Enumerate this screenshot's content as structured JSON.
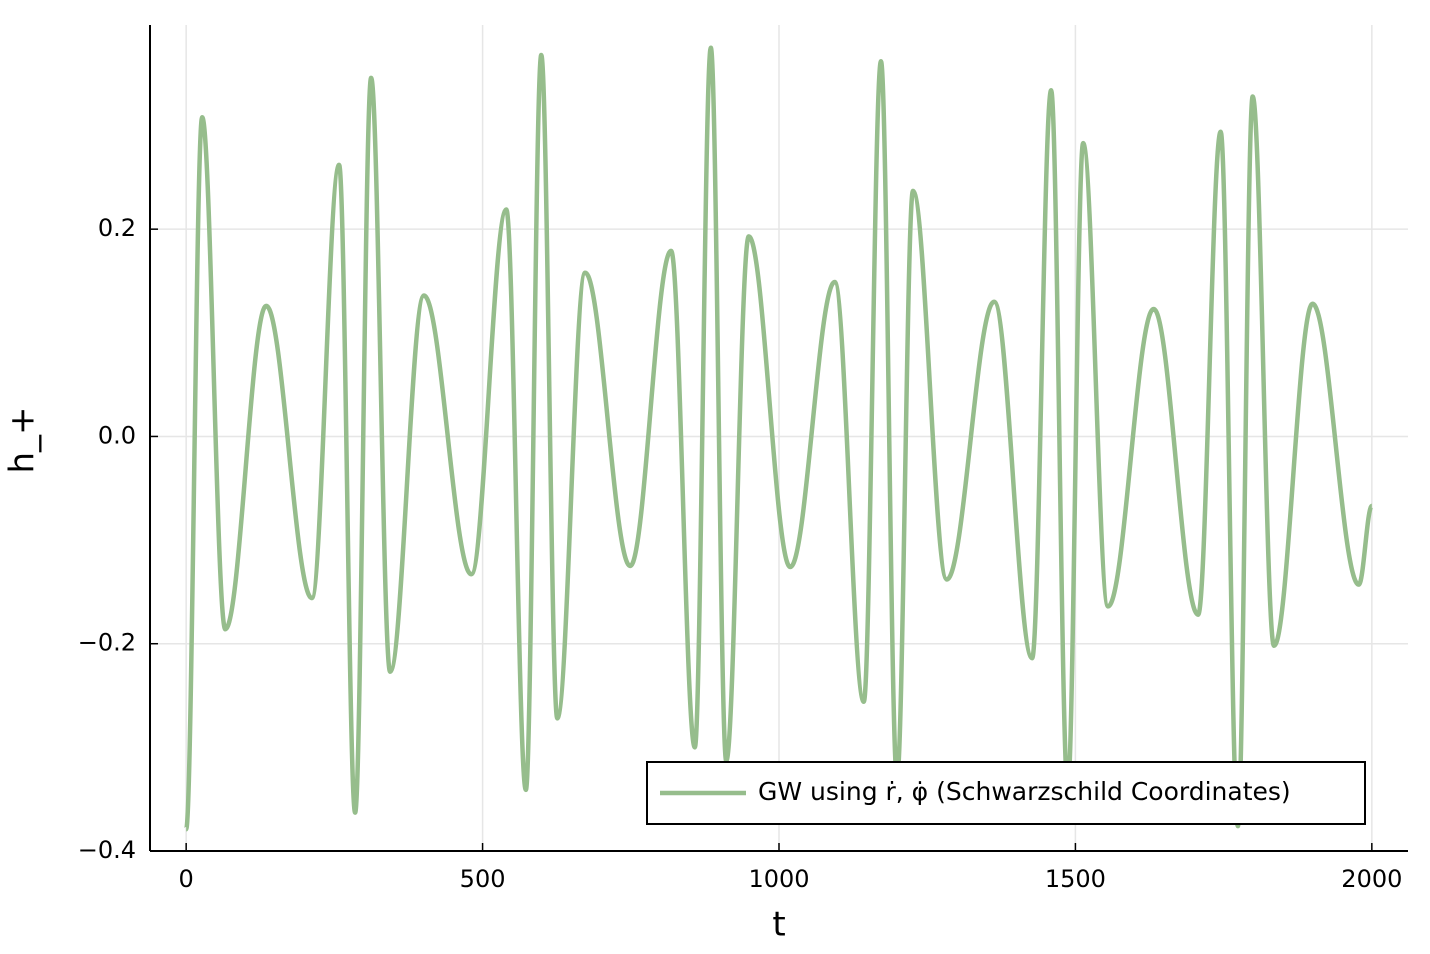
{
  "chart_data": {
    "type": "line",
    "xlabel": "t",
    "ylabel": "h_+",
    "x": [
      0,
      27,
      66,
      135,
      212,
      258,
      285,
      312,
      344,
      401,
      481,
      540,
      573,
      599,
      626,
      673,
      749,
      818,
      858,
      885,
      911,
      949,
      1019,
      1094,
      1143,
      1172,
      1199,
      1226,
      1283,
      1363,
      1427,
      1459,
      1487,
      1513,
      1555,
      1632,
      1707,
      1745,
      1774,
      1799,
      1835,
      1900,
      1978,
      2000
    ],
    "series": [
      {
        "name": "GW using ṙ, φ̇ (Schwarzschild Coordinates)",
        "color": "#96bd8c",
        "values": [
          -0.379,
          0.308,
          -0.186,
          0.126,
          -0.156,
          0.262,
          -0.363,
          0.346,
          -0.227,
          0.136,
          -0.133,
          0.219,
          -0.341,
          0.368,
          -0.272,
          0.158,
          -0.125,
          0.179,
          -0.3,
          0.375,
          -0.313,
          0.193,
          -0.126,
          0.149,
          -0.256,
          0.362,
          -0.33,
          0.237,
          -0.138,
          0.13,
          -0.214,
          0.334,
          -0.34,
          0.283,
          -0.164,
          0.123,
          -0.172,
          0.294,
          -0.376,
          0.328,
          -0.202,
          0.128,
          -0.143,
          -0.067
        ]
      }
    ],
    "xlim": [
      -61,
      2061
    ],
    "ylim": [
      -0.4,
      0.397
    ],
    "xticks": [
      0,
      500,
      1000,
      1500,
      2000
    ],
    "yticks": [
      {
        "value": -0.4,
        "label": "−0.4"
      },
      {
        "value": -0.2,
        "label": "−0.2"
      },
      {
        "value": 0.0,
        "label": "0.0"
      },
      0.2
    ],
    "grid": true,
    "legend": "bottom-right"
  }
}
